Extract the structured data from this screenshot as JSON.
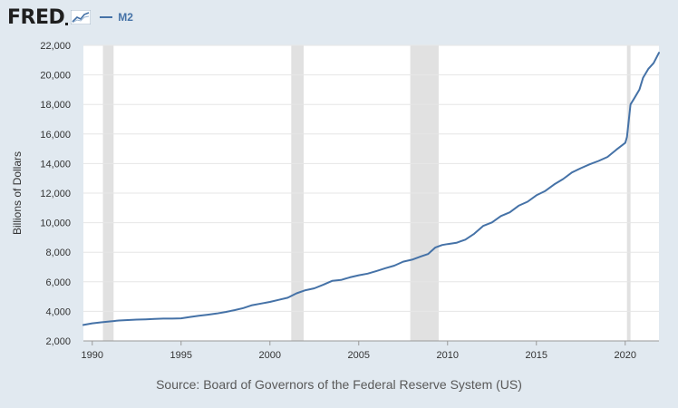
{
  "header": {
    "logo_text": "FRED",
    "legend_label": "M2"
  },
  "source_text": "Source: Board of Governors of the Federal Reserve System (US)",
  "colors": {
    "series": "#4572a7",
    "background": "#e1e9f0",
    "plot_background": "#ffffff",
    "recession": "#e1e1e1",
    "grid": "#e6e6e6"
  },
  "chart_data": {
    "type": "line",
    "title": "",
    "xlabel": "",
    "ylabel": "Billions of Dollars",
    "xlim": [
      1989.5,
      2021.9
    ],
    "ylim": [
      2000,
      22000
    ],
    "x_ticks": [
      1990,
      1995,
      2000,
      2005,
      2010,
      2015,
      2020
    ],
    "y_ticks": [
      2000,
      4000,
      6000,
      8000,
      10000,
      12000,
      14000,
      16000,
      18000,
      20000,
      22000
    ],
    "y_tick_labels": [
      "2,000",
      "4,000",
      "6,000",
      "8,000",
      "10,000",
      "12,000",
      "14,000",
      "16,000",
      "18,000",
      "20,000",
      "22,000"
    ],
    "grid": "horizontal",
    "legend_position": "top-left",
    "recessions": [
      {
        "start": 1990.6,
        "end": 1991.2
      },
      {
        "start": 2001.2,
        "end": 2001.9
      },
      {
        "start": 2007.9,
        "end": 2009.5
      },
      {
        "start": 2020.1,
        "end": 2020.3
      }
    ],
    "series": [
      {
        "name": "M2",
        "x": [
          1989.5,
          1990.0,
          1990.5,
          1991.0,
          1991.5,
          1992.0,
          1992.5,
          1993.0,
          1993.5,
          1994.0,
          1994.5,
          1995.0,
          1995.5,
          1996.0,
          1996.5,
          1997.0,
          1997.5,
          1998.0,
          1998.5,
          1999.0,
          1999.5,
          2000.0,
          2000.5,
          2001.0,
          2001.5,
          2002.0,
          2002.5,
          2003.0,
          2003.5,
          2004.0,
          2004.5,
          2005.0,
          2005.5,
          2006.0,
          2006.5,
          2007.0,
          2007.5,
          2008.0,
          2008.5,
          2008.9,
          2009.3,
          2009.7,
          2010.0,
          2010.5,
          2011.0,
          2011.5,
          2012.0,
          2012.5,
          2013.0,
          2013.5,
          2014.0,
          2014.5,
          2015.0,
          2015.5,
          2016.0,
          2016.5,
          2017.0,
          2017.5,
          2018.0,
          2018.5,
          2019.0,
          2019.5,
          2020.0,
          2020.1,
          2020.3,
          2020.5,
          2020.8,
          2021.0,
          2021.3,
          2021.6,
          2021.9
        ],
        "values": [
          3080,
          3190,
          3260,
          3320,
          3380,
          3410,
          3440,
          3460,
          3490,
          3510,
          3510,
          3530,
          3620,
          3700,
          3770,
          3850,
          3960,
          4080,
          4220,
          4420,
          4530,
          4640,
          4780,
          4920,
          5220,
          5430,
          5560,
          5800,
          6060,
          6120,
          6300,
          6440,
          6550,
          6730,
          6920,
          7090,
          7360,
          7500,
          7720,
          7880,
          8310,
          8490,
          8550,
          8640,
          8850,
          9250,
          9780,
          10020,
          10450,
          10700,
          11150,
          11420,
          11850,
          12150,
          12590,
          12950,
          13400,
          13690,
          13950,
          14180,
          14450,
          14940,
          15400,
          15800,
          18000,
          18400,
          19000,
          19800,
          20400,
          20800,
          21500
        ]
      }
    ]
  }
}
